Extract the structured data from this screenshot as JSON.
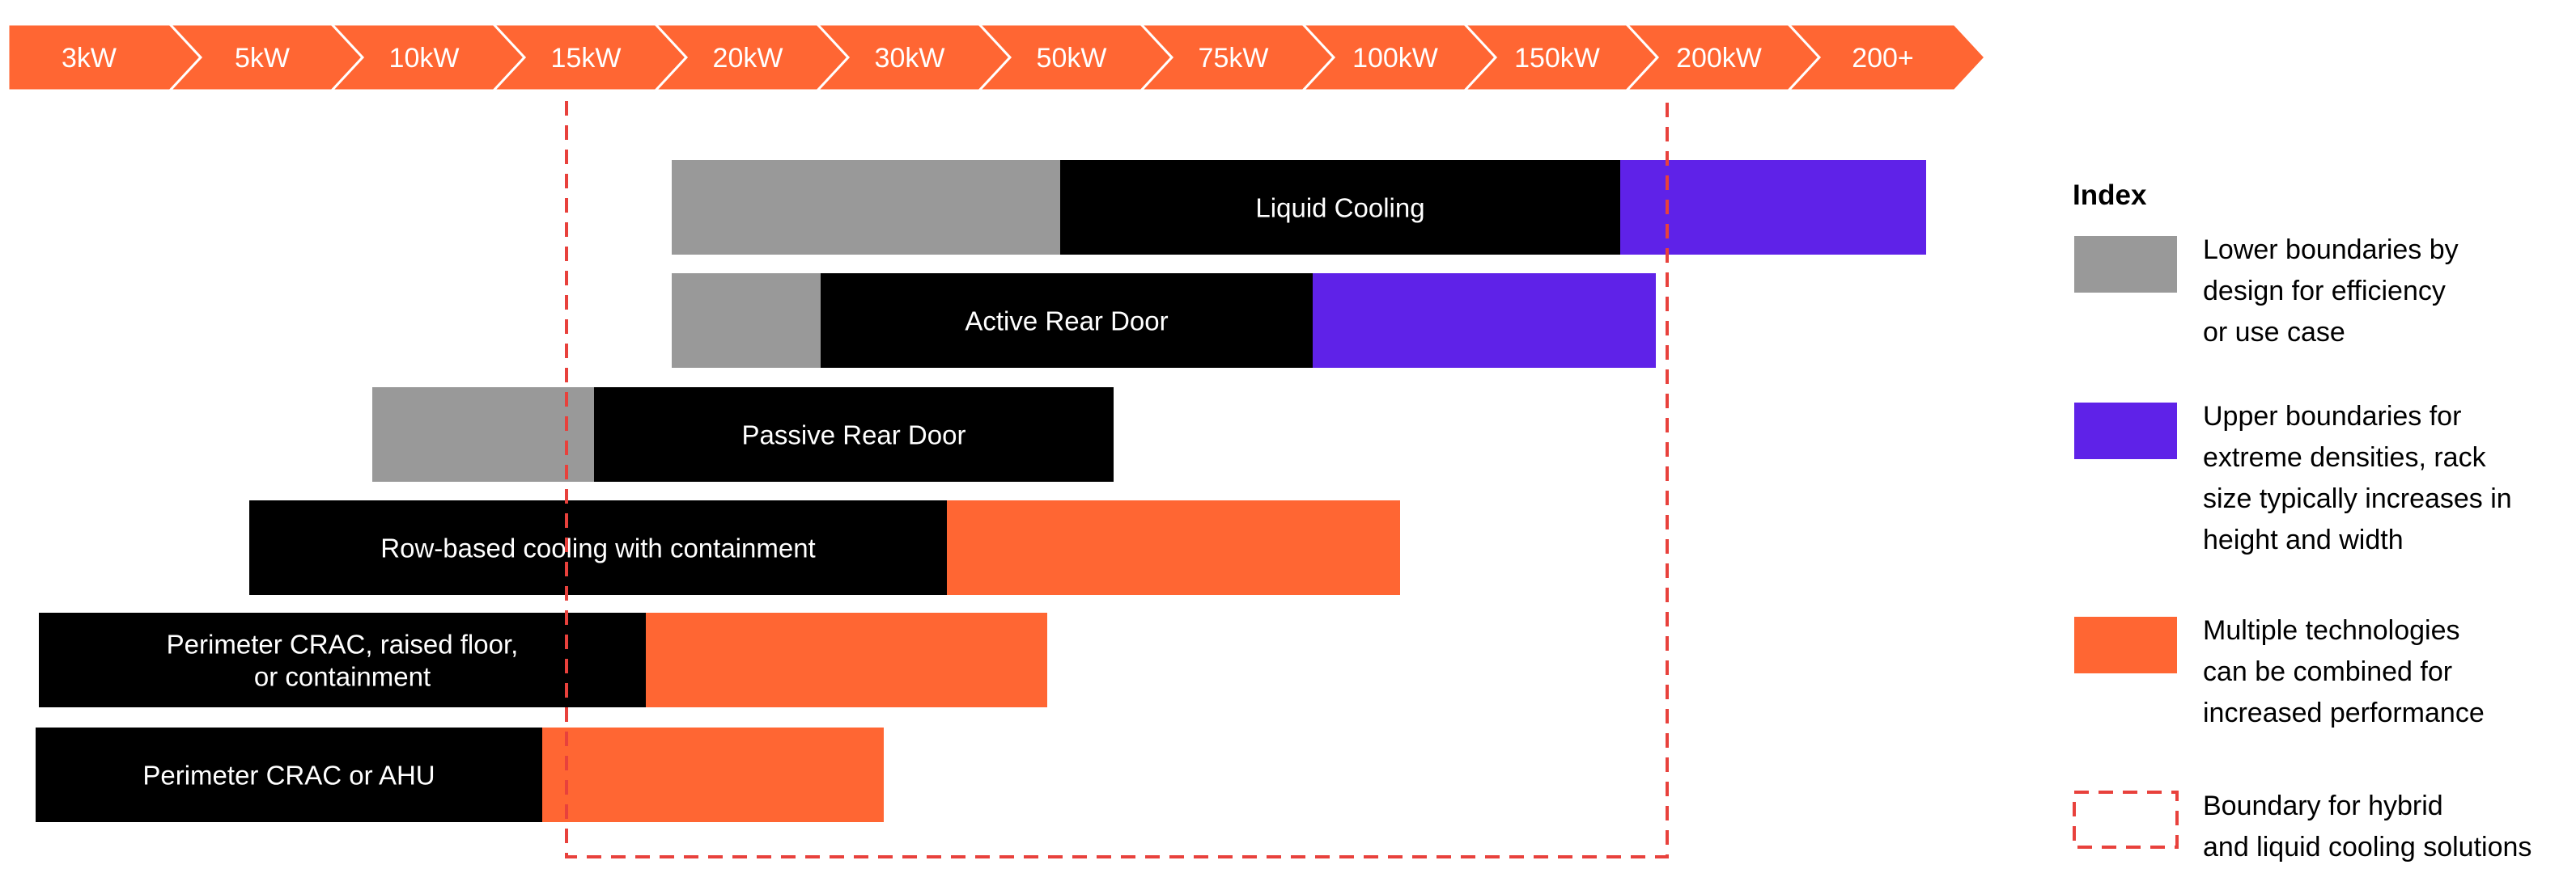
{
  "scale": {
    "labels": [
      "3kW",
      "5kW",
      "10kW",
      "15kW",
      "20kW",
      "30kW",
      "50kW",
      "75kW",
      "100kW",
      "150kW",
      "200kW",
      "200+"
    ],
    "color": "#FF6633",
    "text_color": "#ffffff"
  },
  "colors": {
    "lower": "#999999",
    "core": "#000000",
    "upper": "#5F22E8",
    "multi": "#FF6633",
    "boundary": "#E8413C"
  },
  "rows": [
    {
      "label": "Liquid Cooling",
      "label_lines": [
        "Liquid Cooling"
      ],
      "segments": [
        {
          "type": "lower",
          "from": 4.1,
          "to": 6.5
        },
        {
          "type": "core",
          "from": 6.5,
          "to": 9.96
        },
        {
          "type": "upper",
          "from": 9.96,
          "to": 11.85
        }
      ]
    },
    {
      "label": "Active Rear Door",
      "label_lines": [
        "Active Rear Door"
      ],
      "segments": [
        {
          "type": "lower",
          "from": 4.1,
          "to": 5.02
        },
        {
          "type": "core",
          "from": 5.02,
          "to": 8.06
        },
        {
          "type": "upper",
          "from": 8.06,
          "to": 10.18
        }
      ]
    },
    {
      "label": "Passive Rear Door",
      "label_lines": [
        "Passive Rear Door"
      ],
      "segments": [
        {
          "type": "lower",
          "from": 2.25,
          "to": 3.62
        },
        {
          "type": "core",
          "from": 3.62,
          "to": 6.83
        }
      ]
    },
    {
      "label": "Row-based cooling with containment",
      "label_lines": [
        "Row-based cooling with containment"
      ],
      "segments": [
        {
          "type": "core",
          "from": 1.49,
          "to": 5.8
        },
        {
          "type": "multi",
          "from": 5.8,
          "to": 8.6
        }
      ]
    },
    {
      "label": "Perimeter CRAC, raised floor, or containment",
      "label_lines": [
        "Perimeter CRAC, raised floor,",
        "or containment"
      ],
      "segments": [
        {
          "type": "core",
          "from": 0.19,
          "to": 3.94
        },
        {
          "type": "multi",
          "from": 3.94,
          "to": 6.42
        }
      ]
    },
    {
      "label": "Perimeter CRAC or AHU",
      "label_lines": [
        "Perimeter CRAC or AHU"
      ],
      "segments": [
        {
          "type": "core",
          "from": 0.17,
          "to": 3.3
        },
        {
          "type": "multi",
          "from": 3.3,
          "to": 5.41
        }
      ]
    }
  ],
  "boundary": {
    "from": 3.45,
    "to": 10.25
  },
  "legend": {
    "title": "Index",
    "items": [
      {
        "key": "lower",
        "swatch": "fill",
        "color": "#999999",
        "lines": [
          "Lower boundaries by",
          "design for efficiency",
          "or use case"
        ]
      },
      {
        "key": "upper",
        "swatch": "fill",
        "color": "#5F22E8",
        "lines": [
          "Upper boundaries for",
          "extreme densities, rack",
          "size typically increases in",
          "height and width"
        ]
      },
      {
        "key": "multi",
        "swatch": "fill",
        "color": "#FF6633",
        "lines": [
          "Multiple technologies",
          "can be combined for",
          "increased performance"
        ]
      },
      {
        "key": "boundary",
        "swatch": "dashed",
        "color": "#E8413C",
        "lines": [
          "Boundary for hybrid",
          "and liquid cooling solutions"
        ]
      }
    ]
  }
}
